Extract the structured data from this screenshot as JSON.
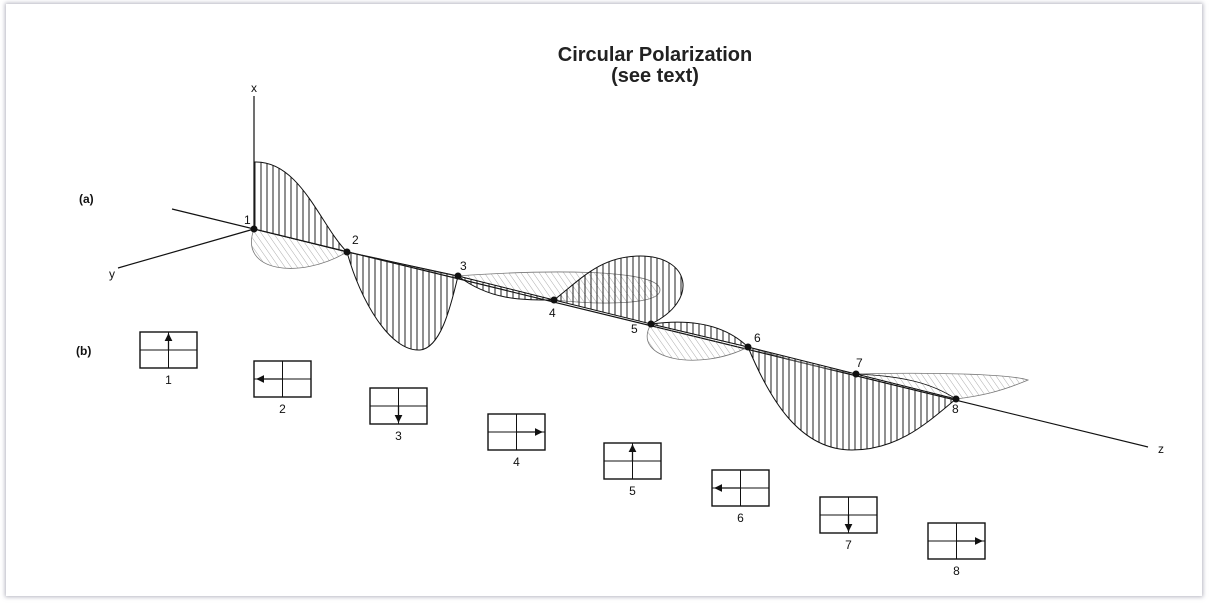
{
  "title_line1": "Circular Polarization",
  "title_line2": "(see text)",
  "axes": {
    "x": "x",
    "y": "y",
    "z": "z"
  },
  "part_labels": {
    "a": "(a)",
    "b": "(b)"
  },
  "points": [
    "1",
    "2",
    "3",
    "4",
    "5",
    "6",
    "7",
    "8"
  ],
  "vector_states": [
    {
      "label": "1",
      "direction": "up"
    },
    {
      "label": "2",
      "direction": "left"
    },
    {
      "label": "3",
      "direction": "down"
    },
    {
      "label": "4",
      "direction": "right"
    },
    {
      "label": "5",
      "direction": "up"
    },
    {
      "label": "6",
      "direction": "left"
    },
    {
      "label": "7",
      "direction": "down"
    },
    {
      "label": "8",
      "direction": "right"
    }
  ]
}
